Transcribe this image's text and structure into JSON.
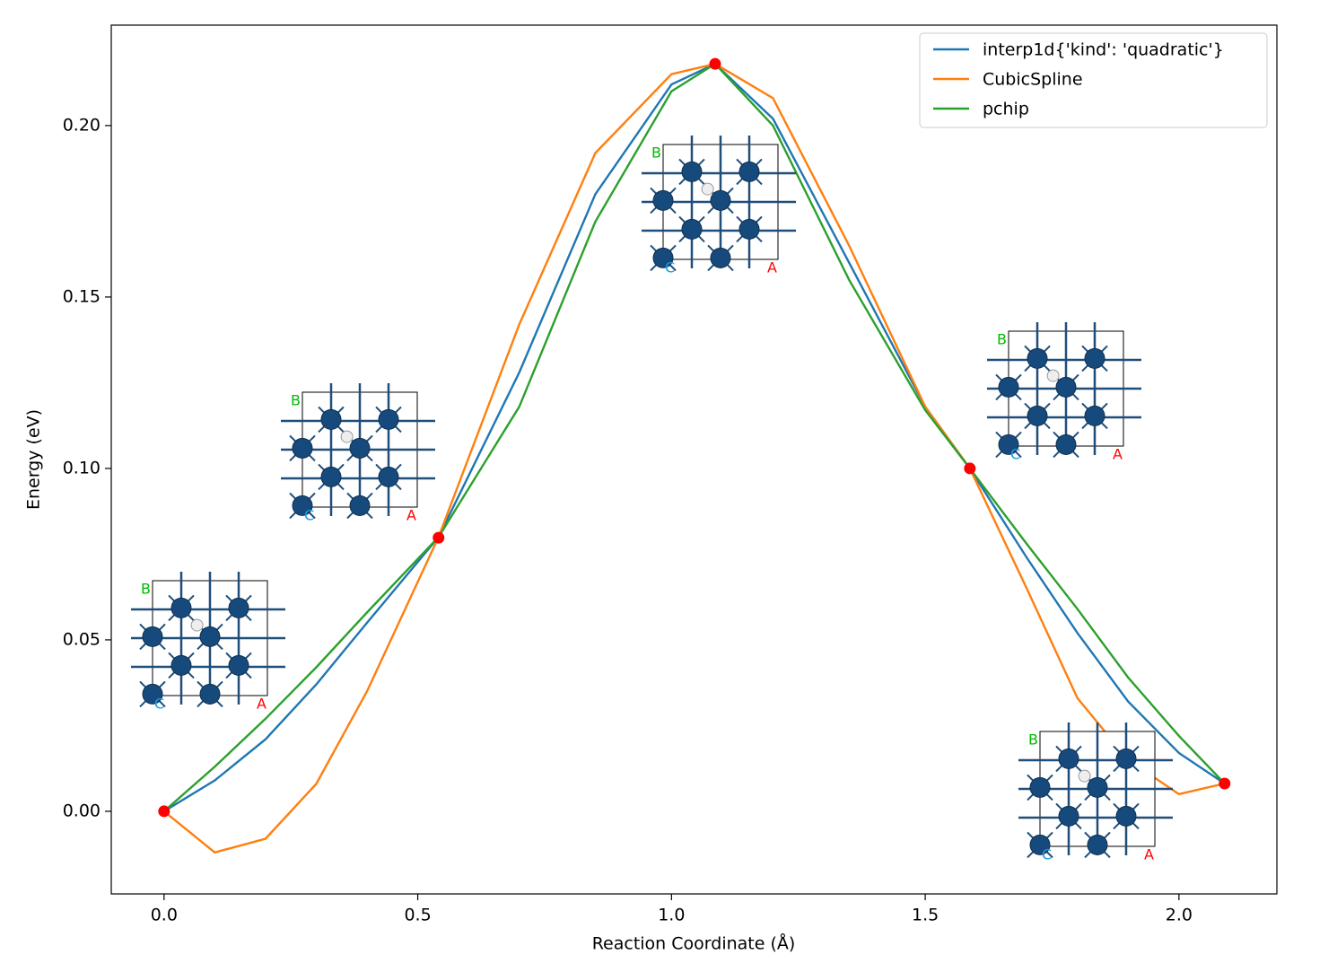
{
  "chart_data": {
    "type": "line",
    "xlabel": "Reaction Coordinate (Å)",
    "ylabel": "Energy (eV)",
    "xlim": [
      -0.104,
      2.193
    ],
    "ylim": [
      -0.0241,
      0.2293
    ],
    "xticks": [
      {
        "value": 0,
        "label": "0.0"
      },
      0.5,
      {
        "value": 1,
        "label": "1.0"
      },
      1.5,
      {
        "value": 2,
        "label": "2.0"
      }
    ],
    "yticks": [
      {
        "value": 0,
        "label": "0.00"
      },
      0.05,
      {
        "value": 0.1,
        "label": "0.10"
      },
      0.15,
      {
        "value": 0.2,
        "label": "0.20"
      }
    ],
    "legend": "upper right",
    "x": [
      0,
      0.1,
      0.2,
      0.3,
      0.4,
      0.541,
      0.7,
      0.85,
      1.0,
      1.086,
      1.2,
      1.35,
      1.5,
      1.588,
      1.7,
      1.8,
      1.9,
      2.0,
      2.09
    ],
    "series": [
      {
        "name": "interp1d{'kind': 'quadratic'}",
        "color": "#1f77b4",
        "values": [
          0,
          0.009,
          0.021,
          0.037,
          0.055,
          0.08,
          0.128,
          0.18,
          0.212,
          0.218,
          0.202,
          0.16,
          0.118,
          0.1,
          0.074,
          0.052,
          0.032,
          0.017,
          0.0081
        ]
      },
      {
        "name": "CubicSpline",
        "color": "#ff7f0e",
        "values": [
          0,
          -0.012,
          -0.008,
          0.008,
          0.035,
          0.08,
          0.142,
          0.192,
          0.215,
          0.218,
          0.208,
          0.165,
          0.118,
          0.1,
          0.065,
          0.033,
          0.015,
          0.005,
          0.0081
        ]
      },
      {
        "name": "pchip",
        "color": "#2ca02c",
        "values": [
          0,
          0.013,
          0.027,
          0.042,
          0.058,
          0.08,
          0.118,
          0.172,
          0.21,
          0.218,
          0.2,
          0.155,
          0.117,
          0.1,
          0.078,
          0.059,
          0.039,
          0.022,
          0.0081
        ]
      }
    ],
    "points": {
      "color": "#ff0000",
      "x": [
        0,
        0.541,
        1.086,
        1.588,
        2.09
      ],
      "values": [
        0,
        0.0798,
        0.218,
        0.1,
        0.0081
      ]
    },
    "structure_labels": [
      "A",
      "B",
      "C"
    ]
  }
}
